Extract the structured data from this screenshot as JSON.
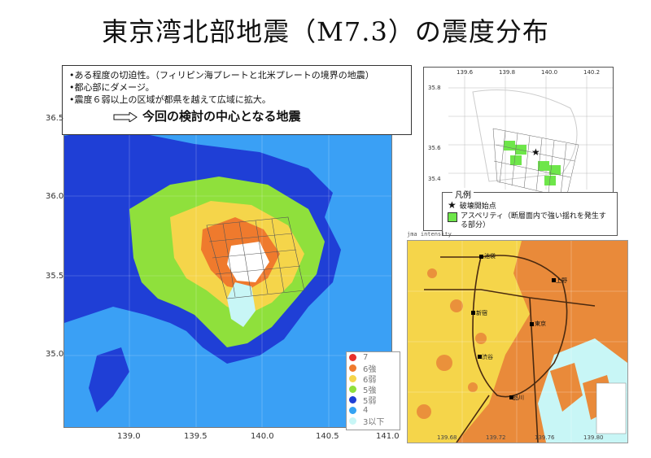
{
  "title": "東京湾北部地震（M7.3）の震度分布",
  "info": {
    "lines": [
      "•ある程度の切迫性。（フィリピン海プレートと北米プレートの境界の地震）",
      "•都心部にダメージ。",
      "•震度６弱以上の区域が都県を越えて広域に拡大。"
    ],
    "focus": "今回の検討の中心となる地震"
  },
  "main_map": {
    "lat_labels": [
      "36.5",
      "36.0",
      "35.5",
      "35.0"
    ],
    "lon_labels": [
      "139.0",
      "139.5",
      "140.0",
      "140.5",
      "141.0"
    ],
    "legend": [
      {
        "label": "7",
        "color": "#e8302a"
      },
      {
        "label": "6強",
        "color": "#ef7a2d"
      },
      {
        "label": "6弱",
        "color": "#f5d54a"
      },
      {
        "label": "5強",
        "color": "#8fe03c"
      },
      {
        "label": "5弱",
        "color": "#1f3fd6"
      },
      {
        "label": "4",
        "color": "#35a3f3"
      },
      {
        "label": "3以下",
        "color": "#c8f6f6"
      }
    ]
  },
  "inset_map": {
    "lat_labels": [
      "35.8",
      "35.6",
      "35.4"
    ],
    "lon_labels": [
      "139.6",
      "139.8",
      "140.0",
      "140.2"
    ],
    "legend_title": "凡例",
    "legend_items": [
      {
        "icon": "star-icon",
        "text": "破壊開始点"
      },
      {
        "icon": "green-square-icon",
        "text": "アスペリティ（断層面内で強い揺れを発生する部分）"
      }
    ]
  },
  "zoom_map": {
    "header": "jma intensity",
    "lon_labels": [
      "139.68",
      "139.72",
      "139.76",
      "139.80"
    ],
    "stations": [
      "池袋",
      "上野",
      "新宿",
      "渋谷",
      "品川",
      "東京"
    ]
  },
  "colors": {
    "seven": "#e8302a",
    "six_plus": "#ef7a2d",
    "six_minus": "#f5d54a",
    "five_plus": "#8fe03c",
    "five_minus": "#1f3fd6",
    "four": "#35a3f3",
    "three": "#c8f6f6"
  }
}
